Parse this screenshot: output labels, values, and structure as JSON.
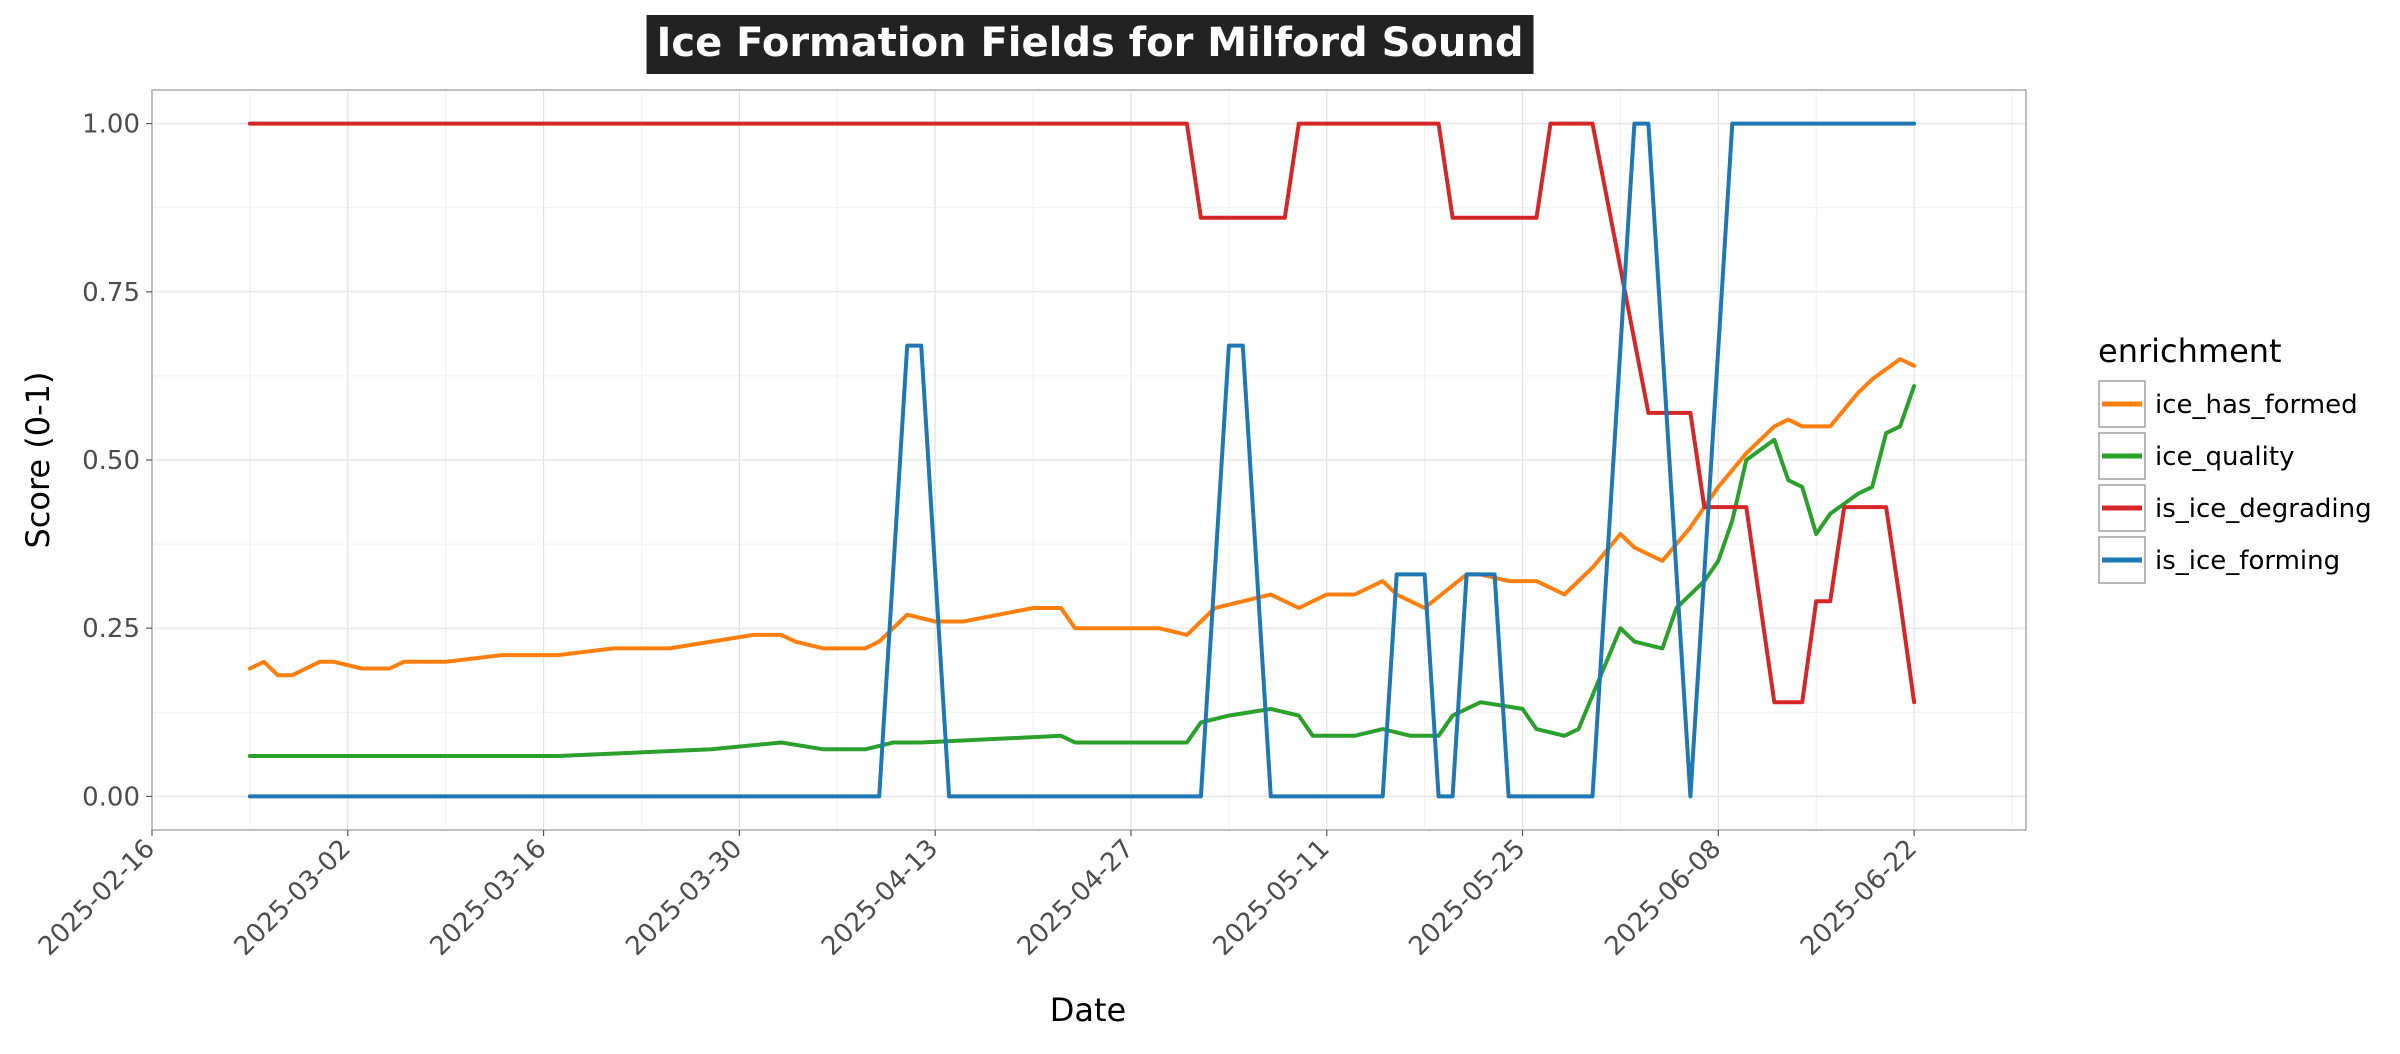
{
  "chart_data": {
    "type": "line",
    "title": "Ice Formation Fields for Milford Sound",
    "xlabel": "Date",
    "ylabel": "Score (0-1)",
    "x_axis": {
      "type": "date",
      "range": [
        "2025-02-16",
        "2025-06-30"
      ],
      "ticks": [
        "2025-02-16",
        "2025-03-02",
        "2025-03-16",
        "2025-03-30",
        "2025-04-13",
        "2025-04-27",
        "2025-05-11",
        "2025-05-25",
        "2025-06-08",
        "2025-06-22"
      ]
    },
    "y_axis": {
      "range": [
        -0.05,
        1.05
      ],
      "ticks": [
        0.0,
        0.25,
        0.5,
        0.75,
        1.0
      ],
      "tick_labels": [
        "0.00",
        "0.25",
        "0.50",
        "0.75",
        "1.00"
      ]
    },
    "grid": true,
    "legend": {
      "title": "enrichment",
      "placement": "right"
    },
    "series": [
      {
        "name": "ice_has_formed",
        "color": "#ff7f0e",
        "points": [
          [
            "2025-02-23",
            0.19
          ],
          [
            "2025-02-24",
            0.2
          ],
          [
            "2025-02-25",
            0.18
          ],
          [
            "2025-02-26",
            0.18
          ],
          [
            "2025-02-28",
            0.2
          ],
          [
            "2025-03-01",
            0.2
          ],
          [
            "2025-03-03",
            0.19
          ],
          [
            "2025-03-05",
            0.19
          ],
          [
            "2025-03-06",
            0.2
          ],
          [
            "2025-03-09",
            0.2
          ],
          [
            "2025-03-13",
            0.21
          ],
          [
            "2025-03-17",
            0.21
          ],
          [
            "2025-03-21",
            0.22
          ],
          [
            "2025-03-25",
            0.22
          ],
          [
            "2025-03-28",
            0.23
          ],
          [
            "2025-03-31",
            0.24
          ],
          [
            "2025-04-02",
            0.24
          ],
          [
            "2025-04-03",
            0.23
          ],
          [
            "2025-04-05",
            0.22
          ],
          [
            "2025-04-08",
            0.22
          ],
          [
            "2025-04-09",
            0.23
          ],
          [
            "2025-04-11",
            0.27
          ],
          [
            "2025-04-13",
            0.26
          ],
          [
            "2025-04-15",
            0.26
          ],
          [
            "2025-04-20",
            0.28
          ],
          [
            "2025-04-22",
            0.28
          ],
          [
            "2025-04-23",
            0.25
          ],
          [
            "2025-04-26",
            0.25
          ],
          [
            "2025-04-29",
            0.25
          ],
          [
            "2025-05-01",
            0.24
          ],
          [
            "2025-05-03",
            0.28
          ],
          [
            "2025-05-05",
            0.29
          ],
          [
            "2025-05-07",
            0.3
          ],
          [
            "2025-05-09",
            0.28
          ],
          [
            "2025-05-11",
            0.3
          ],
          [
            "2025-05-13",
            0.3
          ],
          [
            "2025-05-15",
            0.32
          ],
          [
            "2025-05-16",
            0.3
          ],
          [
            "2025-05-18",
            0.28
          ],
          [
            "2025-05-21",
            0.33
          ],
          [
            "2025-05-22",
            0.33
          ],
          [
            "2025-05-24",
            0.32
          ],
          [
            "2025-05-26",
            0.32
          ],
          [
            "2025-05-28",
            0.3
          ],
          [
            "2025-05-30",
            0.34
          ],
          [
            "2025-06-01",
            0.39
          ],
          [
            "2025-06-02",
            0.37
          ],
          [
            "2025-06-04",
            0.35
          ],
          [
            "2025-06-06",
            0.4
          ],
          [
            "2025-06-08",
            0.46
          ],
          [
            "2025-06-10",
            0.51
          ],
          [
            "2025-06-12",
            0.55
          ],
          [
            "2025-06-13",
            0.56
          ],
          [
            "2025-06-14",
            0.55
          ],
          [
            "2025-06-16",
            0.55
          ],
          [
            "2025-06-18",
            0.6
          ],
          [
            "2025-06-19",
            0.62
          ],
          [
            "2025-06-21",
            0.65
          ],
          [
            "2025-06-22",
            0.64
          ]
        ]
      },
      {
        "name": "ice_quality",
        "color": "#2ca02c",
        "points": [
          [
            "2025-02-23",
            0.06
          ],
          [
            "2025-02-24",
            0.06
          ],
          [
            "2025-02-25",
            0.06
          ],
          [
            "2025-02-28",
            0.06
          ],
          [
            "2025-03-04",
            0.06
          ],
          [
            "2025-03-17",
            0.06
          ],
          [
            "2025-03-28",
            0.07
          ],
          [
            "2025-04-02",
            0.08
          ],
          [
            "2025-04-05",
            0.07
          ],
          [
            "2025-04-08",
            0.07
          ],
          [
            "2025-04-10",
            0.08
          ],
          [
            "2025-04-12",
            0.08
          ],
          [
            "2025-04-22",
            0.09
          ],
          [
            "2025-04-23",
            0.08
          ],
          [
            "2025-04-25",
            0.08
          ],
          [
            "2025-05-01",
            0.08
          ],
          [
            "2025-05-02",
            0.11
          ],
          [
            "2025-05-04",
            0.12
          ],
          [
            "2025-05-07",
            0.13
          ],
          [
            "2025-05-09",
            0.12
          ],
          [
            "2025-05-10",
            0.09
          ],
          [
            "2025-05-13",
            0.09
          ],
          [
            "2025-05-15",
            0.1
          ],
          [
            "2025-05-17",
            0.09
          ],
          [
            "2025-05-19",
            0.09
          ],
          [
            "2025-05-20",
            0.12
          ],
          [
            "2025-05-22",
            0.14
          ],
          [
            "2025-05-25",
            0.13
          ],
          [
            "2025-05-26",
            0.1
          ],
          [
            "2025-05-28",
            0.09
          ],
          [
            "2025-05-29",
            0.1
          ],
          [
            "2025-06-01",
            0.25
          ],
          [
            "2025-06-02",
            0.23
          ],
          [
            "2025-06-04",
            0.22
          ],
          [
            "2025-06-05",
            0.28
          ],
          [
            "2025-06-07",
            0.32
          ],
          [
            "2025-06-08",
            0.35
          ],
          [
            "2025-06-09",
            0.41
          ],
          [
            "2025-06-10",
            0.5
          ],
          [
            "2025-06-12",
            0.53
          ],
          [
            "2025-06-13",
            0.47
          ],
          [
            "2025-06-14",
            0.46
          ],
          [
            "2025-06-15",
            0.39
          ],
          [
            "2025-06-16",
            0.42
          ],
          [
            "2025-06-18",
            0.45
          ],
          [
            "2025-06-19",
            0.46
          ],
          [
            "2025-06-20",
            0.54
          ],
          [
            "2025-06-21",
            0.55
          ],
          [
            "2025-06-22",
            0.61
          ]
        ]
      },
      {
        "name": "is_ice_degrading",
        "color": "#d62728",
        "points": [
          [
            "2025-02-23",
            1.0
          ],
          [
            "2025-05-01",
            1.0
          ],
          [
            "2025-05-02",
            0.86
          ],
          [
            "2025-05-08",
            0.86
          ],
          [
            "2025-05-09",
            1.0
          ],
          [
            "2025-05-19",
            1.0
          ],
          [
            "2025-05-20",
            0.86
          ],
          [
            "2025-05-26",
            0.86
          ],
          [
            "2025-05-27",
            1.0
          ],
          [
            "2025-05-30",
            1.0
          ],
          [
            "2025-06-03",
            0.57
          ],
          [
            "2025-06-06",
            0.57
          ],
          [
            "2025-06-07",
            0.43
          ],
          [
            "2025-06-10",
            0.43
          ],
          [
            "2025-06-12",
            0.14
          ],
          [
            "2025-06-14",
            0.14
          ],
          [
            "2025-06-15",
            0.29
          ],
          [
            "2025-06-16",
            0.29
          ],
          [
            "2025-06-17",
            0.43
          ],
          [
            "2025-06-20",
            0.43
          ],
          [
            "2025-06-21",
            0.29
          ],
          [
            "2025-06-22",
            0.14
          ]
        ]
      },
      {
        "name": "is_ice_forming",
        "color": "#1f77b4",
        "points": [
          [
            "2025-02-23",
            0.0
          ],
          [
            "2025-04-09",
            0.0
          ],
          [
            "2025-04-11",
            0.67
          ],
          [
            "2025-04-12",
            0.67
          ],
          [
            "2025-04-14",
            0.0
          ],
          [
            "2025-05-02",
            0.0
          ],
          [
            "2025-05-04",
            0.67
          ],
          [
            "2025-05-05",
            0.67
          ],
          [
            "2025-05-07",
            0.0
          ],
          [
            "2025-05-15",
            0.0
          ],
          [
            "2025-05-16",
            0.33
          ],
          [
            "2025-05-18",
            0.33
          ],
          [
            "2025-05-19",
            0.0
          ],
          [
            "2025-05-20",
            0.0
          ],
          [
            "2025-05-21",
            0.33
          ],
          [
            "2025-05-23",
            0.33
          ],
          [
            "2025-05-24",
            0.0
          ],
          [
            "2025-05-30",
            0.0
          ],
          [
            "2025-06-02",
            1.0
          ],
          [
            "2025-06-03",
            1.0
          ],
          [
            "2025-06-06",
            0.0
          ],
          [
            "2025-06-09",
            1.0
          ],
          [
            "2025-06-22",
            1.0
          ]
        ]
      }
    ]
  }
}
